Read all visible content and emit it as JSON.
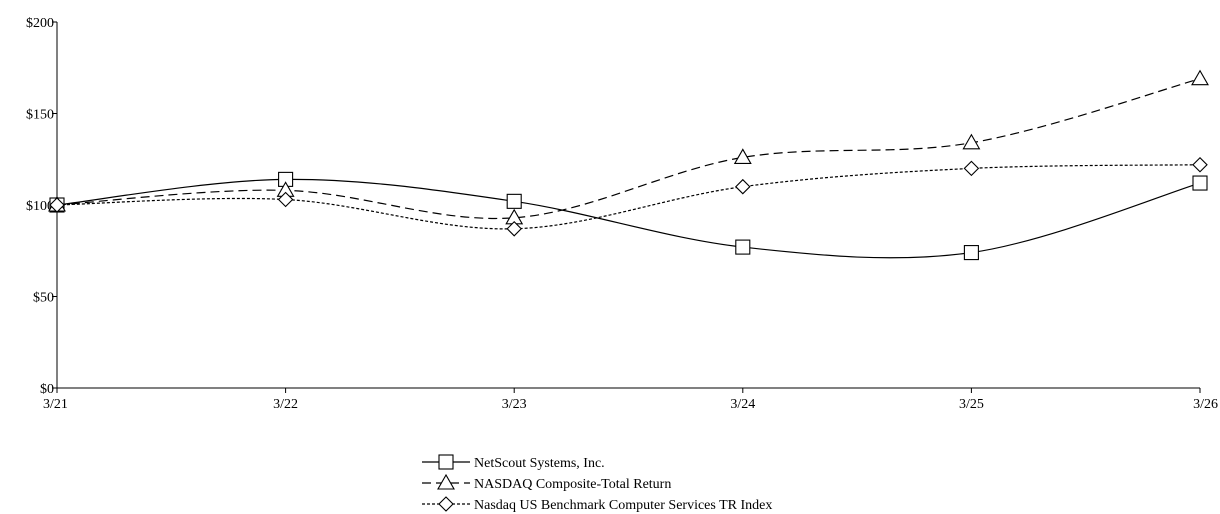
{
  "chart_data": {
    "type": "line",
    "title": "",
    "xlabel": "",
    "ylabel": "",
    "categories": [
      "3/21",
      "3/22",
      "3/23",
      "3/24",
      "3/25",
      "3/26"
    ],
    "ylim": [
      0,
      200
    ],
    "yticks": [
      0,
      50,
      100,
      150,
      200
    ],
    "ytick_labels": [
      "$0",
      "$50",
      "$100",
      "$150",
      "$200"
    ],
    "grid": false,
    "legend_position": "bottom-center",
    "series": [
      {
        "name": "NetScout Systems, Inc.",
        "marker": "square",
        "dash": "solid",
        "color": "#000000",
        "values": [
          100,
          114,
          102,
          77,
          74,
          112
        ]
      },
      {
        "name": "NASDAQ Composite-Total Return",
        "marker": "triangle",
        "dash": "dashed",
        "color": "#000000",
        "values": [
          100,
          108,
          93,
          126,
          134,
          169
        ]
      },
      {
        "name": "Nasdaq US Benchmark Computer Services TR Index",
        "marker": "diamond",
        "dash": "dotted",
        "color": "#000000",
        "values": [
          100,
          103,
          87,
          110,
          120,
          122
        ]
      }
    ]
  }
}
